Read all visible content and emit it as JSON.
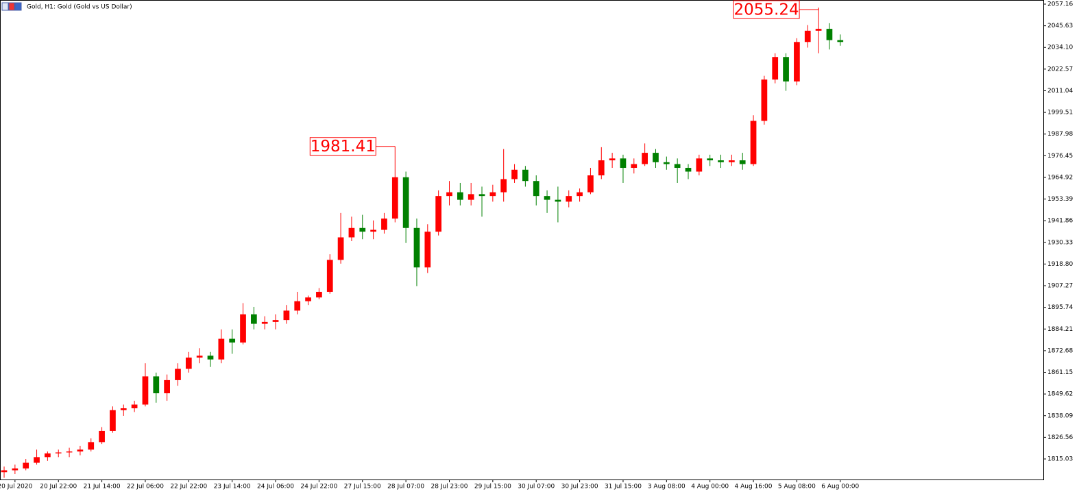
{
  "chart_data": {
    "type": "candlestick",
    "title": "Gold, H1:  Gold (Gold vs US Dollar)",
    "up_color": "#ff0000",
    "down_color": "#008000",
    "xlim": [
      -0.38,
      95.7
    ],
    "xticks": [
      {
        "value": 1,
        "label": "20 Jul 2020"
      },
      {
        "value": 5,
        "label": "20 Jul 22:00"
      },
      {
        "value": 9,
        "label": "21 Jul 14:00"
      },
      {
        "value": 13,
        "label": "22 Jul 06:00"
      },
      {
        "value": 17,
        "label": "22 Jul 22:00"
      },
      {
        "value": 21,
        "label": "23 Jul 14:00"
      },
      {
        "value": 25,
        "label": "24 Jul 06:00"
      },
      {
        "value": 29,
        "label": "24 Jul 22:00"
      },
      {
        "value": 33,
        "label": "27 Jul 15:00"
      },
      {
        "value": 37,
        "label": "28 Jul 07:00"
      },
      {
        "value": 41,
        "label": "28 Jul 23:00"
      },
      {
        "value": 45,
        "label": "29 Jul 15:00"
      },
      {
        "value": 49,
        "label": "30 Jul 07:00"
      },
      {
        "value": 53,
        "label": "30 Jul 23:00"
      },
      {
        "value": 57,
        "label": "31 Jul 15:00"
      },
      {
        "value": 61,
        "label": "3 Aug 08:00"
      },
      {
        "value": 65,
        "label": "4 Aug 00:00"
      },
      {
        "value": 69,
        "label": "4 Aug 16:00"
      },
      {
        "value": 73,
        "label": "5 Aug 08:00"
      },
      {
        "value": 77,
        "label": "6 Aug 00:00"
      }
    ],
    "ylim": [
      1804.09,
      2059.35
    ],
    "yticks": [
      1815.03,
      1826.56,
      1838.09,
      1849.62,
      1861.15,
      1872.68,
      1884.21,
      1895.74,
      1907.27,
      {
        "value": 1918.8,
        "label": "1918.80"
      },
      1930.33,
      1941.86,
      1953.39,
      1964.92,
      1976.45,
      1987.98,
      1999.51,
      2011.04,
      2022.57,
      {
        "value": 2034.1,
        "label": "2034.10"
      },
      2045.63,
      2057.16
    ],
    "high_labels": [
      1981.41,
      2055.24
    ],
    "ohlc": [
      [
        1808,
        1811,
        1805,
        1809
      ],
      [
        1809,
        1812,
        1807,
        1810
      ],
      [
        1810,
        1815,
        1809,
        1813
      ],
      [
        1813,
        1820,
        1812,
        1816
      ],
      [
        1816,
        1819,
        1814,
        1818
      ],
      [
        1818,
        1820,
        1816,
        1818.5
      ],
      [
        1818.5,
        1821,
        1816,
        1819
      ],
      [
        1819,
        1822,
        1817,
        1820
      ],
      [
        1820,
        1826,
        1819,
        1824
      ],
      [
        1824,
        1832,
        1823,
        1830
      ],
      [
        1830,
        1843,
        1829,
        1841
      ],
      [
        1841,
        1844,
        1838,
        1842
      ],
      [
        1842,
        1846,
        1840,
        1844
      ],
      [
        1844,
        1866,
        1843,
        1859
      ],
      [
        1859,
        1861,
        1845,
        1850
      ],
      [
        1850,
        1860,
        1846,
        1857
      ],
      [
        1857,
        1866,
        1854,
        1863
      ],
      [
        1863,
        1872,
        1861,
        1869
      ],
      [
        1869,
        1874,
        1866,
        1870
      ],
      [
        1870,
        1872,
        1864,
        1868
      ],
      [
        1868,
        1884,
        1866,
        1879
      ],
      [
        1879,
        1884,
        1871,
        1877
      ],
      [
        1877,
        1898,
        1876,
        1892
      ],
      [
        1892,
        1896,
        1884,
        1887
      ],
      [
        1887,
        1891,
        1884,
        1888
      ],
      [
        1888,
        1892,
        1884,
        1889
      ],
      [
        1889,
        1897,
        1887,
        1894
      ],
      [
        1894,
        1904,
        1892,
        1899
      ],
      [
        1899,
        1902,
        1897,
        1901
      ],
      [
        1901,
        1906,
        1900,
        1904
      ],
      [
        1904,
        1924,
        1903,
        1921
      ],
      [
        1921,
        1946,
        1919,
        1933
      ],
      [
        1933,
        1944,
        1931,
        1938
      ],
      [
        1938,
        1945,
        1932,
        1936
      ],
      [
        1936,
        1942,
        1932,
        1937
      ],
      [
        1937,
        1946,
        1935,
        1943
      ],
      [
        1943,
        1981.41,
        1941,
        1965
      ],
      [
        1965,
        1968,
        1930,
        1938
      ],
      [
        1938,
        1943,
        1907,
        1917
      ],
      [
        1917,
        1940,
        1914,
        1936
      ],
      [
        1936,
        1958,
        1934,
        1955
      ],
      [
        1955,
        1963,
        1950,
        1957
      ],
      [
        1957,
        1962,
        1950,
        1953
      ],
      [
        1953,
        1962,
        1950,
        1956
      ],
      [
        1956,
        1960,
        1944,
        1955
      ],
      [
        1955,
        1961,
        1952,
        1957
      ],
      [
        1957,
        1980,
        1952,
        1964
      ],
      [
        1964,
        1972,
        1962,
        1969
      ],
      [
        1969,
        1971,
        1960,
        1963
      ],
      [
        1963,
        1966,
        1950,
        1955
      ],
      [
        1955,
        1958,
        1946,
        1953
      ],
      [
        1953,
        1960,
        1941,
        1952
      ],
      [
        1952,
        1958,
        1949,
        1955
      ],
      [
        1955,
        1959,
        1952,
        1957
      ],
      [
        1957,
        1970,
        1956,
        1966
      ],
      [
        1966,
        1981,
        1964,
        1974
      ],
      [
        1974,
        1978,
        1970,
        1975
      ],
      [
        1975,
        1977,
        1962,
        1970
      ],
      [
        1970,
        1975,
        1967,
        1972
      ],
      [
        1972,
        1983,
        1971,
        1978
      ],
      [
        1978,
        1980,
        1970,
        1973
      ],
      [
        1973,
        1976,
        1969,
        1972
      ],
      [
        1972,
        1975,
        1962,
        1970
      ],
      [
        1970,
        1972,
        1964,
        1968
      ],
      [
        1968,
        1977,
        1966,
        1975
      ],
      [
        1975,
        1977,
        1971,
        1974
      ],
      [
        1974,
        1977,
        1970,
        1973
      ],
      [
        1973,
        1977,
        1971,
        1974
      ],
      [
        1974,
        1978,
        1969,
        1972
      ],
      [
        1972,
        1998,
        1971,
        1995
      ],
      [
        1995,
        2019,
        1993,
        2017
      ],
      [
        2017,
        2031,
        2015,
        2029
      ],
      [
        2029,
        2031,
        2011,
        2016
      ],
      [
        2016,
        2039,
        2014,
        2037
      ],
      [
        2037,
        2046,
        2034,
        2043
      ],
      [
        2043,
        2055.24,
        2031,
        2044
      ],
      [
        2044,
        2047,
        2033,
        2038
      ],
      [
        2038,
        2041,
        2035,
        2037
      ]
    ]
  }
}
